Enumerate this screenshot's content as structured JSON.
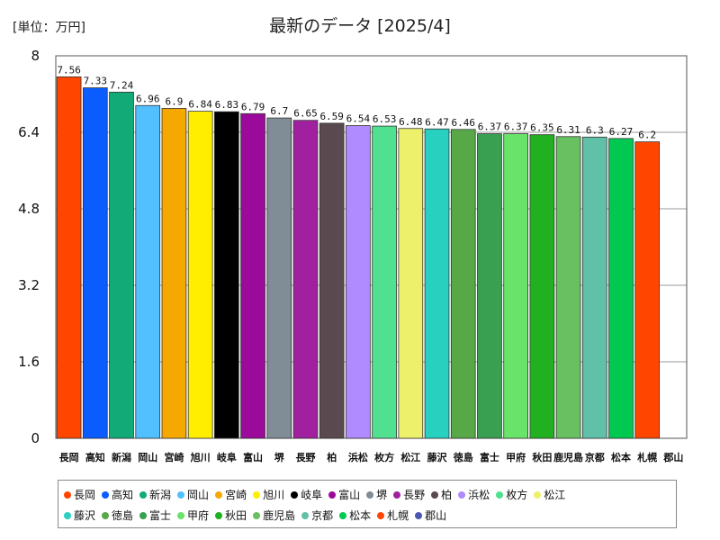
{
  "chart_data": {
    "type": "bar",
    "title": "最新のデータ [2025/4]",
    "unit_label": "[単位：万円]",
    "categories": [
      "長岡",
      "高知",
      "新潟",
      "岡山",
      "宮崎",
      "旭川",
      "岐阜",
      "富山",
      "堺",
      "長野",
      "柏",
      "浜松",
      "枚方",
      "松江",
      "藤沢",
      "徳島",
      "富士",
      "甲府",
      "秋田",
      "鹿児島",
      "京都",
      "松本",
      "札幌",
      "郡山"
    ],
    "values": [
      7.56,
      7.33,
      7.24,
      6.96,
      6.9,
      6.84,
      6.83,
      6.79,
      6.7,
      6.65,
      6.59,
      6.54,
      6.53,
      6.48,
      6.47,
      6.46,
      6.37,
      6.37,
      6.35,
      6.31,
      6.3,
      6.27,
      6.2,
      0
    ],
    "value_labels": [
      "7.56",
      "7.33",
      "7.24",
      "6.96",
      "6.9",
      "6.84",
      "6.83",
      "6.79",
      "6.7",
      "6.65",
      "6.59",
      "6.54",
      "6.53",
      "6.48",
      "6.47",
      "6.46",
      "6.37",
      "6.37",
      "6.35",
      "6.31",
      "6.3",
      "6.27",
      "6.2",
      ""
    ],
    "colors": [
      "#ff4500",
      "#0a5cff",
      "#12ab78",
      "#52c0ff",
      "#f5a800",
      "#ffee00",
      "#000000",
      "#9c0a9c",
      "#808c96",
      "#a020a0",
      "#5a4a50",
      "#b08aff",
      "#50e090",
      "#ecf06a",
      "#28d0c0",
      "#58a848",
      "#38a050",
      "#6ae36a",
      "#20b020",
      "#68c060",
      "#60c0a8",
      "#00c850",
      "#ff4500",
      "#4a58b0"
    ],
    "yticks": [
      "0",
      "1.6",
      "3.2",
      "4.8",
      "6.4",
      "8"
    ],
    "ylim": [
      0,
      8
    ],
    "xlabel": "",
    "ylabel": "",
    "legend_position": "bottom",
    "grid": "horizontal"
  }
}
